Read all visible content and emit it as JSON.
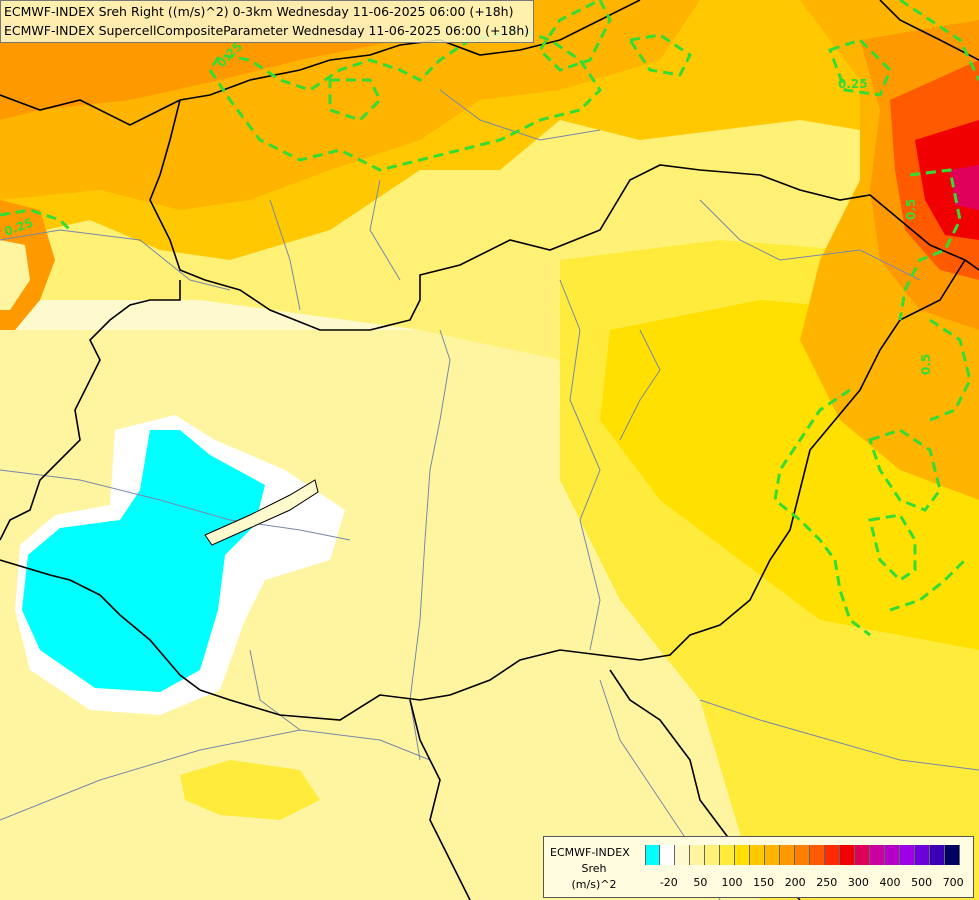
{
  "header": {
    "line1": "ECMWF-INDEX Sreh Right ((m/s)^2) 0-3km Wednesday 11-06-2025 06:00 (+18h)",
    "line2": "ECMWF-INDEX SupercellCompositeParameter Wednesday 11-06-2025 06:00 (+18h)"
  },
  "contour_labels": [
    {
      "text": "0.25"
    },
    {
      "text": "0.25"
    },
    {
      "text": "0.25"
    },
    {
      "text": "0.5"
    },
    {
      "text": "0.5"
    }
  ],
  "legend": {
    "source": "ECMWF-INDEX",
    "field": "Sreh",
    "unit": "(m/s)^2",
    "colors": [
      "#00ffff",
      "#ffffff",
      "#fffacd",
      "#fff5a0",
      "#fff176",
      "#ffeb3b",
      "#ffe000",
      "#ffc800",
      "#ffb400",
      "#ff9900",
      "#ff7f00",
      "#ff5a00",
      "#ff2a00",
      "#f00000",
      "#e0005a",
      "#c800a0",
      "#b400c8",
      "#9b00e6",
      "#6e00dc",
      "#3c00b4",
      "#000064"
    ],
    "ticks": [
      "-20",
      "50",
      "100",
      "150",
      "200",
      "250",
      "300",
      "400",
      "500",
      "700"
    ]
  },
  "colors": {
    "contour": "#33dd33",
    "border": "#000000",
    "river": "#7788aa"
  }
}
